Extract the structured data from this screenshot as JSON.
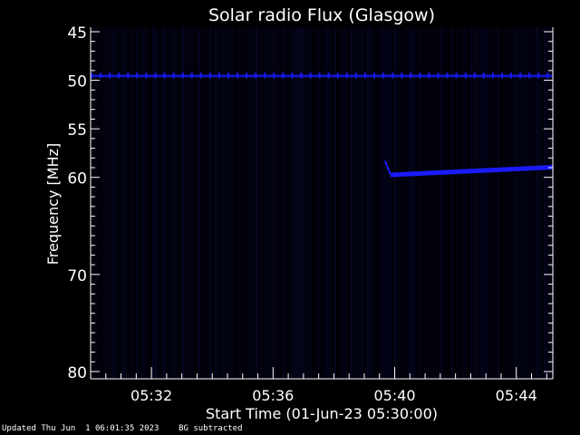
{
  "chart_data": {
    "type": "heatmap",
    "title": "Solar radio Flux (Glasgow)",
    "xlabel": "Start Time (01-Jun-23 05:30:00)",
    "ylabel": "Frequency [MHz]",
    "x_ticks": [
      "05:32",
      "05:36",
      "05:40",
      "05:44"
    ],
    "x_tick_minutes": [
      2,
      6,
      10,
      14
    ],
    "xlim_minutes_after_start": [
      0,
      15.2
    ],
    "y_ticks": [
      45,
      50,
      55,
      60,
      70,
      80
    ],
    "ylim": [
      80,
      45
    ],
    "y_inverted": true,
    "grid": false,
    "colormap": "black-to-blue",
    "features": [
      {
        "kind": "continuous band",
        "freq_mhz": 49.6,
        "t_start_min": 0,
        "t_end_min": 15.2
      },
      {
        "kind": "emission onset",
        "t_start_min": 9.8,
        "t_end_min": 15.2,
        "freq_start_mhz": 58.3,
        "freq_mhz_at_onset": 59.7,
        "freq_mhz_at_end": 59.0
      }
    ]
  },
  "footer": {
    "updated": "Updated Thu Jun  1 06:01:35 2023",
    "note": "BG subtracted"
  },
  "colors": {
    "background": "#000000",
    "signal": "#1a1aff",
    "axis": "#ffffff"
  }
}
